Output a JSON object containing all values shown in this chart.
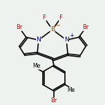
{
  "bg_color": "#eef2ee",
  "line_color": "#000000",
  "bond_width": 1.2,
  "atom_colors": {
    "Br": "#cc0000",
    "F": "#cc0000",
    "B": "#8B4513",
    "N": "#00008B",
    "C": "#000000"
  },
  "font_size_atom": 6.5,
  "font_size_small": 5.0
}
